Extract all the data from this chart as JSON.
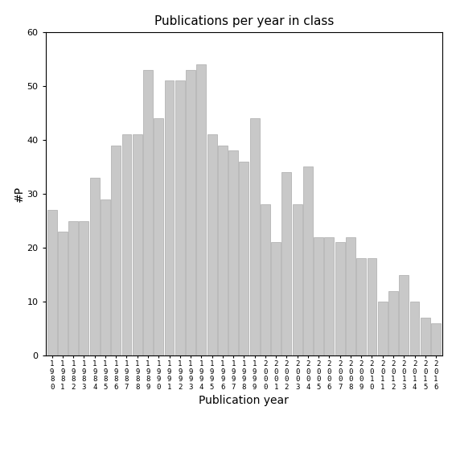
{
  "title": "Publications per year in class",
  "xlabel": "Publication year",
  "ylabel": "#P",
  "bar_color": "#c8c8c8",
  "bar_edgecolor": "#aaaaaa",
  "years": [
    1980,
    1981,
    1982,
    1983,
    1984,
    1985,
    1986,
    1987,
    1988,
    1989,
    1990,
    1991,
    1992,
    1993,
    1994,
    1995,
    1996,
    1997,
    1998,
    1999,
    2000,
    2001,
    2002,
    2003,
    2004,
    2005,
    2006,
    2007,
    2008,
    2009,
    2010,
    2011,
    2012,
    2013,
    2014,
    2015,
    2016
  ],
  "values": [
    27,
    23,
    25,
    25,
    33,
    29,
    39,
    41,
    41,
    53,
    44,
    51,
    51,
    53,
    54,
    41,
    39,
    38,
    36,
    44,
    28,
    21,
    34,
    28,
    35,
    22,
    22,
    21,
    22,
    18,
    18,
    10,
    12,
    15,
    10,
    7,
    6
  ],
  "ylim": [
    0,
    60
  ],
  "yticks": [
    0,
    10,
    20,
    30,
    40,
    50,
    60
  ],
  "title_fontsize": 11,
  "axis_fontsize": 10,
  "tick_fontsize": 8
}
